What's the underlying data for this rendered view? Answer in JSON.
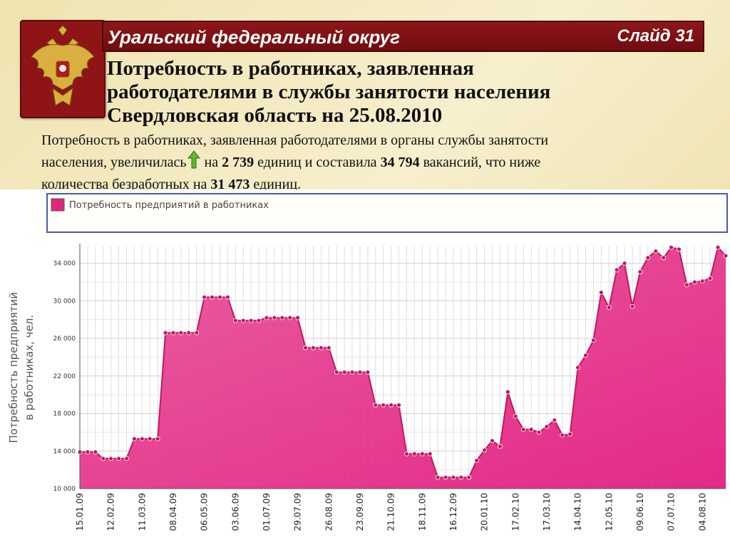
{
  "banner": {
    "title": "Уральский федеральный округ",
    "slide": "Слайд 31"
  },
  "heading": {
    "line1": "Потребность в работниках, заявленная",
    "line2": "работодателями в службы занятости населения",
    "line3": "Свердловская область на 25.08.2010"
  },
  "paragraph": {
    "line1": "Потребность в работниках, заявленная работодателями в органы службы занятости",
    "line2_a": "населения, увеличилась",
    "line2_b": " на ",
    "line2_c": "2 739",
    "line2_d": " единиц и составила ",
    "line2_e": "34 794",
    "line2_f": " вакансий, что ниже",
    "line3_a": "количества безработных на ",
    "line3_b": "31 473",
    "line3_c": " единиц."
  },
  "icons": {
    "emblem": "russian-coat-of-arms-icon",
    "increase": "green-up-arrow-icon"
  },
  "colors": {
    "banner": "#8e1416",
    "series_fill": "#e0287a",
    "series_line": "#c0185f"
  },
  "chart_data": {
    "type": "area",
    "legend": [
      "Потребность предприятий в работниках"
    ],
    "ylabel_line1": "Потребность предприятий",
    "ylabel_line2": "в работниках, чел.",
    "ylim": [
      10000,
      35800
    ],
    "yticks": [
      10000,
      14000,
      18000,
      22000,
      26000,
      30000,
      34000
    ],
    "ytick_labels": [
      "10 000",
      "14 000",
      "18 000",
      "22 000",
      "26 000",
      "30 000",
      "34 000"
    ],
    "xtick_labels": [
      "15.01.09",
      "12.02.09",
      "11.03.09",
      "08.04.09",
      "06.05.09",
      "03.06.09",
      "01.07.09",
      "29.07.09",
      "26.08.09",
      "23.09.09",
      "21.10.09",
      "18.11.09",
      "16.12.09",
      "20.01.10",
      "17.02.10",
      "17.03.10",
      "14.04.10",
      "12.05.10",
      "09.06.10",
      "07.07.10",
      "04.08.10"
    ],
    "grid": true,
    "legend_position": "top",
    "series": [
      {
        "name": "Потребность предприятий в работниках",
        "values": [
          13900,
          13900,
          13900,
          13200,
          13200,
          13200,
          13200,
          15300,
          15300,
          15300,
          15300,
          26600,
          26600,
          26600,
          26600,
          26600,
          30400,
          30400,
          30400,
          30400,
          27900,
          27900,
          27900,
          27900,
          28200,
          28200,
          28200,
          28200,
          28200,
          25000,
          25000,
          25000,
          25000,
          22400,
          22400,
          22400,
          22400,
          22400,
          18900,
          18900,
          18900,
          18900,
          13700,
          13700,
          13700,
          13700,
          11200,
          11200,
          11200,
          11200,
          11200,
          13000,
          14100,
          15100,
          14500,
          20300,
          17700,
          16300,
          16300,
          16000,
          16600,
          17300,
          15700,
          15800,
          22900,
          24200,
          25800,
          30900,
          29300,
          33300,
          34000,
          29400,
          33100,
          34600,
          35300,
          34600,
          35700,
          35500,
          31700,
          32000,
          32100,
          32400,
          35700,
          34800
        ]
      }
    ]
  }
}
